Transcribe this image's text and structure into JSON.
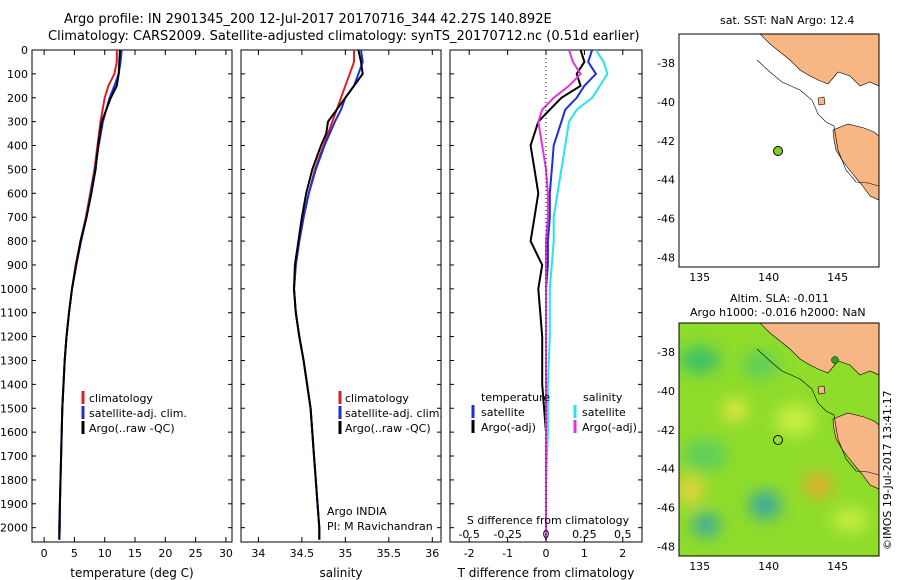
{
  "header": {
    "line1": "Argo profile: IN 2901345_200 12-Jul-2017 20170716_344 42.27S 140.892E",
    "line2": "Climatology: CARS2009. Satellite-adjusted climatology: synTS_20170712.nc (0.51d earlier)"
  },
  "colors": {
    "climatology": "#e11f1f",
    "satellite": "#1c2fd8",
    "argo": "#000000",
    "s_satellite": "#27e3f0",
    "s_argo": "#e533e0",
    "land": "#f6b784"
  },
  "chart_data": [
    {
      "type": "line",
      "panel": "temperature",
      "xlabel": "temperature (deg C)",
      "ylabel": "",
      "xlim": [
        -2,
        31
      ],
      "ylim": [
        2060,
        0
      ],
      "xticks": [
        "0",
        "5",
        "10",
        "15",
        "20",
        "25",
        "30"
      ],
      "yticks": [
        "0",
        "100",
        "200",
        "300",
        "400",
        "500",
        "600",
        "700",
        "800",
        "900",
        "1000",
        "1100",
        "1200",
        "1300",
        "1400",
        "1500",
        "1600",
        "1700",
        "1800",
        "1900",
        "2000"
      ],
      "legend": [
        "climatology",
        "satellite-adj. clim.",
        "Argo(..raw -QC)"
      ],
      "series": [
        {
          "name": "climatology",
          "depth": [
            0,
            50,
            100,
            150,
            200,
            300,
            400,
            500,
            600,
            700,
            800,
            900,
            1000,
            1100,
            1200,
            1300,
            1400,
            1500,
            1600,
            1700,
            1800,
            1900,
            2000,
            2050
          ],
          "values": [
            12.0,
            12.0,
            11.6,
            10.6,
            10.0,
            9.3,
            8.8,
            8.3,
            7.6,
            6.9,
            6.0,
            5.2,
            4.6,
            4.1,
            3.7,
            3.4,
            3.2,
            3.0,
            2.9,
            2.8,
            2.7,
            2.6,
            2.5,
            2.5
          ]
        },
        {
          "name": "satellite-adj. clim.",
          "depth": [
            0,
            50,
            100,
            150,
            200,
            300,
            400,
            500,
            600,
            700,
            800,
            900,
            1000,
            1100,
            1200,
            1300,
            1400,
            1500,
            1600,
            1700,
            1800,
            1900,
            2000,
            2050
          ],
          "values": [
            12.8,
            12.6,
            12.3,
            11.6,
            10.8,
            9.7,
            9.0,
            8.4,
            7.7,
            7.0,
            6.1,
            5.3,
            4.6,
            4.1,
            3.7,
            3.4,
            3.2,
            3.0,
            2.9,
            2.8,
            2.7,
            2.6,
            2.6,
            2.5
          ]
        },
        {
          "name": "Argo(..raw -QC)",
          "depth": [
            0,
            50,
            100,
            150,
            200,
            300,
            400,
            500,
            600,
            700,
            800,
            900,
            1000,
            1100,
            1200,
            1300,
            1400,
            1500,
            1600,
            1700,
            1800,
            1900,
            2000,
            2050
          ],
          "values": [
            12.5,
            12.4,
            12.3,
            12.0,
            11.0,
            9.5,
            8.9,
            8.5,
            7.8,
            7.0,
            6.0,
            5.3,
            4.6,
            4.1,
            3.7,
            3.4,
            3.2,
            3.0,
            2.9,
            2.8,
            2.7,
            2.6,
            2.5,
            2.5
          ]
        }
      ]
    },
    {
      "type": "line",
      "panel": "salinity",
      "xlabel": "salinity",
      "ylabel": "",
      "xlim": [
        33.8,
        36.1
      ],
      "ylim": [
        2060,
        0
      ],
      "xticks": [
        "34",
        "34.5",
        "35",
        "35.5",
        "36"
      ],
      "legend": [
        "climatology",
        "satellite-adj. clim.",
        "Argo(..raw -QC)"
      ],
      "annotation": [
        "Argo INDIA",
        "PI: M Ravichandran"
      ],
      "series": [
        {
          "name": "climatology",
          "depth": [
            0,
            50,
            100,
            150,
            200,
            250,
            300,
            350,
            400,
            500,
            600,
            700,
            800,
            900,
            1000,
            1100,
            1200,
            1300,
            1400,
            1500,
            1600,
            1700,
            1800,
            1900,
            2000,
            2050
          ],
          "values": [
            35.1,
            35.1,
            35.05,
            35.0,
            34.95,
            34.9,
            34.85,
            34.8,
            34.75,
            34.65,
            34.58,
            34.52,
            34.47,
            34.43,
            34.41,
            34.43,
            34.47,
            34.52,
            34.56,
            34.6,
            34.62,
            34.64,
            34.66,
            34.68,
            34.7,
            34.7
          ]
        },
        {
          "name": "satellite-adj. clim.",
          "depth": [
            0,
            50,
            100,
            150,
            200,
            250,
            300,
            350,
            400,
            500,
            600,
            700,
            800,
            900,
            1000,
            1100,
            1200,
            1300,
            1400,
            1500,
            1600,
            1700,
            1800,
            1900,
            2000,
            2050
          ],
          "values": [
            35.18,
            35.2,
            35.15,
            35.1,
            35.0,
            34.95,
            34.88,
            34.82,
            34.76,
            34.66,
            34.58,
            34.52,
            34.47,
            34.43,
            34.41,
            34.43,
            34.47,
            34.52,
            34.56,
            34.6,
            34.62,
            34.64,
            34.66,
            34.68,
            34.7,
            34.7
          ]
        },
        {
          "name": "Argo(..raw -QC)",
          "depth": [
            0,
            50,
            100,
            150,
            200,
            250,
            300,
            350,
            400,
            500,
            600,
            700,
            800,
            900,
            1000,
            1100,
            1200,
            1300,
            1400,
            1500,
            1600,
            1700,
            1800,
            1900,
            2000,
            2050
          ],
          "values": [
            35.15,
            35.18,
            35.2,
            35.1,
            35.0,
            34.9,
            34.8,
            34.78,
            34.72,
            34.62,
            34.55,
            34.5,
            34.46,
            34.42,
            34.41,
            34.43,
            34.47,
            34.52,
            34.56,
            34.6,
            34.62,
            34.64,
            34.66,
            34.68,
            34.7,
            34.7
          ]
        }
      ]
    },
    {
      "type": "line",
      "panel": "difference",
      "xlabel": "T difference from climatology",
      "xlabel2": "S difference from climatology",
      "xlim": [
        -2.5,
        2.5
      ],
      "ylim": [
        2060,
        0
      ],
      "xticks": [
        "-2",
        "-1",
        "0",
        "1",
        "2"
      ],
      "xticks2": [
        "-0.5",
        "-0.25",
        "0",
        "0.25",
        "0.5"
      ],
      "legend_t": [
        "temperature",
        "satellite",
        "Argo(-adj)"
      ],
      "legend_s": [
        "salinity",
        "satellite",
        "Argo(-adj)"
      ],
      "series": [
        {
          "name": "satellite",
          "depth": [
            0,
            50,
            100,
            150,
            200,
            250,
            300,
            400,
            500,
            600,
            700,
            800,
            900,
            1000,
            1200,
            1400,
            1600,
            1800,
            2000,
            2050
          ],
          "values": [
            1.2,
            1.1,
            1.3,
            1.0,
            0.8,
            0.5,
            0.4,
            0.2,
            0.15,
            0.1,
            0.1,
            0.05,
            0.05,
            0.0,
            0.0,
            0.0,
            0.0,
            0.0,
            0.0,
            0.0
          ]
        },
        {
          "name": "Argo(-adj)",
          "depth": [
            0,
            50,
            100,
            150,
            200,
            250,
            300,
            400,
            500,
            600,
            700,
            800,
            900,
            1000,
            1200,
            1400,
            1600,
            1800,
            2000,
            2050
          ],
          "values": [
            0.9,
            1.0,
            0.8,
            0.9,
            0.4,
            0.1,
            -0.2,
            -0.4,
            -0.3,
            -0.2,
            -0.3,
            -0.4,
            -0.1,
            -0.2,
            -0.1,
            -0.1,
            0.0,
            0.0,
            0.0,
            0.0
          ]
        },
        {
          "name": "satellite (S)",
          "depth": [
            0,
            50,
            100,
            150,
            200,
            250,
            300,
            400,
            500,
            600,
            700,
            800,
            900,
            1000,
            1200,
            1400,
            1600,
            1800,
            2000,
            2050
          ],
          "values": [
            1.3,
            1.5,
            1.6,
            1.4,
            1.2,
            0.8,
            0.6,
            0.5,
            0.4,
            0.3,
            0.2,
            0.2,
            0.15,
            0.1,
            0.1,
            0.05,
            0.05,
            0.0,
            0.0,
            0.0
          ]
        },
        {
          "name": "Argo(-adj) (S)",
          "depth": [
            0,
            50,
            100,
            150,
            200,
            250,
            300,
            400,
            500,
            600,
            700,
            800,
            900,
            1000,
            1200,
            1400,
            1600,
            1800,
            2000,
            2050
          ],
          "values": [
            0.6,
            0.7,
            0.9,
            0.6,
            0.2,
            -0.1,
            -0.2,
            -0.1,
            0.0,
            0.05,
            0.05,
            0.0,
            0.0,
            0.0,
            0.0,
            0.0,
            0.0,
            0.0,
            0.0,
            0.0
          ]
        }
      ]
    }
  ],
  "map_top": {
    "title": "sat. SST: NaN Argo: 12.4",
    "xticks": [
      "135",
      "140",
      "145"
    ],
    "yticks": [
      "-38",
      "-40",
      "-42",
      "-44",
      "-46",
      "-48"
    ],
    "lonlim": [
      133.5,
      148
    ],
    "latlim": [
      -48.5,
      -36.5
    ],
    "float": {
      "lon": 140.892,
      "lat": -42.27
    }
  },
  "map_bottom": {
    "title_line1": "Altim. SLA: -0.011",
    "title_line2": "Argo h1000: -0.016 h2000: NaN",
    "xticks": [
      "135",
      "140",
      "145"
    ],
    "yticks": [
      "-38",
      "-40",
      "-42",
      "-44",
      "-46",
      "-48"
    ],
    "float": {
      "lon": 140.892,
      "lat": -42.27
    }
  },
  "credit": "©IMOS 19-Jul-2017 13:41:17"
}
